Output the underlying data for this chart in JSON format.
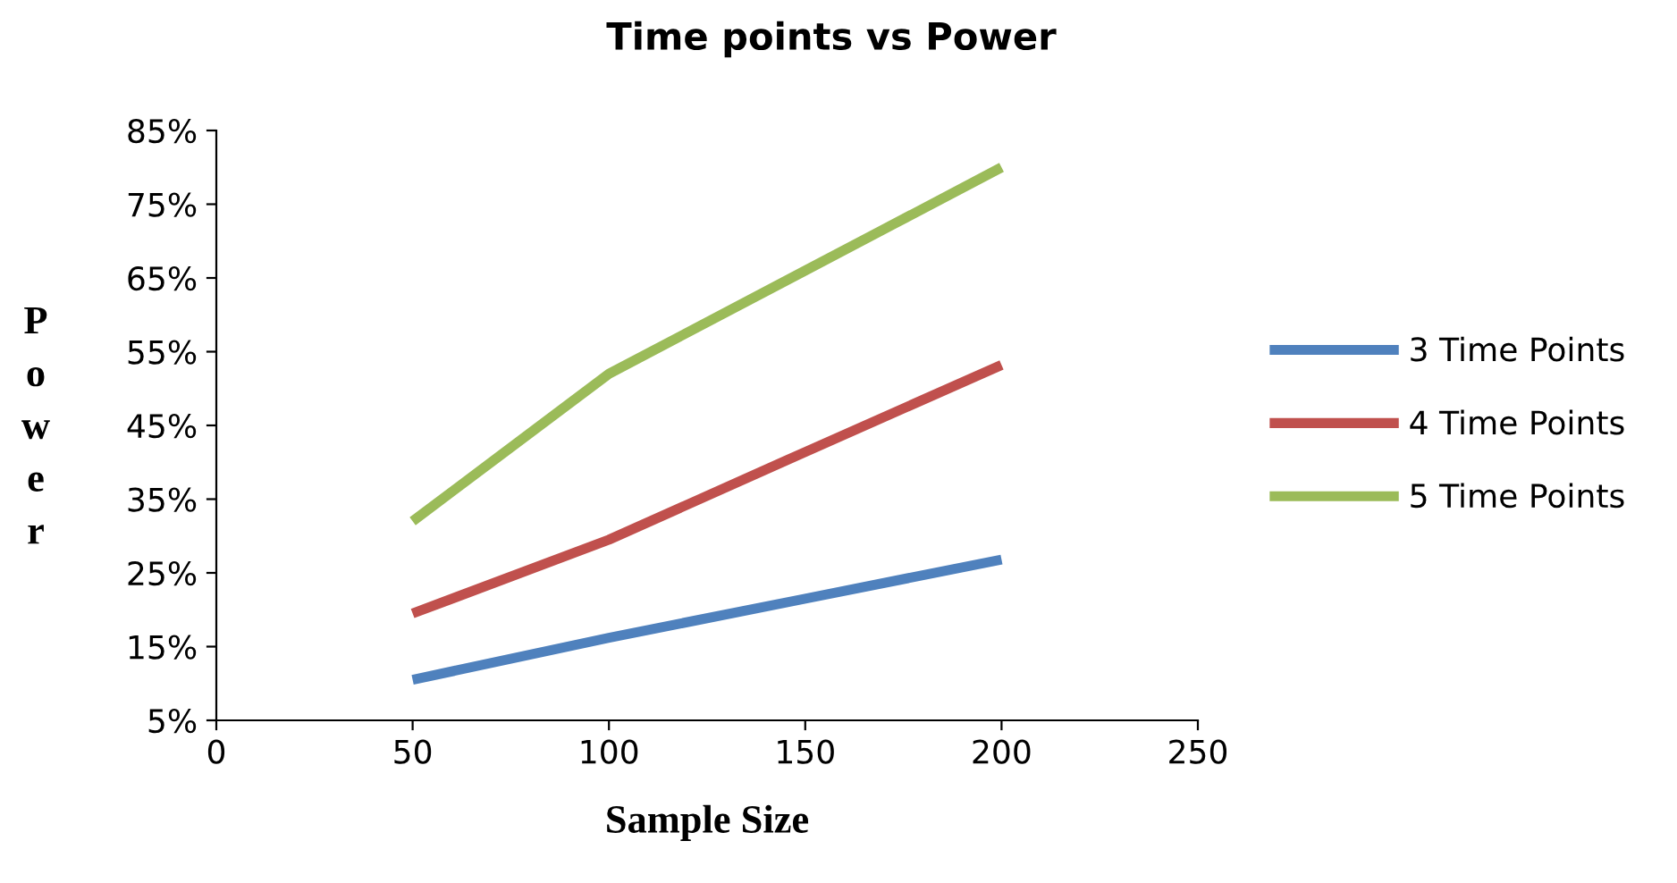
{
  "chart_data": {
    "type": "line",
    "title": "Time points vs Power",
    "xlabel": "Sample Size",
    "ylabel": "Power",
    "x": [
      50,
      100,
      150,
      200
    ],
    "series": [
      {
        "name": "3 Time Points",
        "color": "#4f81bd",
        "values": [
          10.5,
          16.2,
          21.5,
          26.8
        ]
      },
      {
        "name": "4 Time Points",
        "color": "#c0504d",
        "values": [
          19.5,
          29.5,
          41.4,
          53.2
        ]
      },
      {
        "name": "5 Time Points",
        "color": "#9bbb59",
        "values": [
          32,
          52,
          66,
          80
        ]
      }
    ],
    "xlim": [
      0,
      250
    ],
    "xticks": [
      0,
      50,
      100,
      150,
      200,
      250
    ],
    "ylim": [
      5,
      85
    ],
    "yticks": [
      {
        "value": 5,
        "label": "5%"
      },
      {
        "value": 15,
        "label": "15%"
      },
      {
        "value": 25,
        "label": "25%"
      },
      {
        "value": 35,
        "label": "35%"
      },
      {
        "value": 45,
        "label": "45%"
      },
      {
        "value": 55,
        "label": "55%"
      },
      {
        "value": 65,
        "label": "65%"
      },
      {
        "value": 75,
        "label": "75%"
      },
      {
        "value": 85,
        "label": "85%"
      }
    ],
    "grid": false,
    "legend": "right",
    "marker": "none",
    "line_style": "solid"
  }
}
